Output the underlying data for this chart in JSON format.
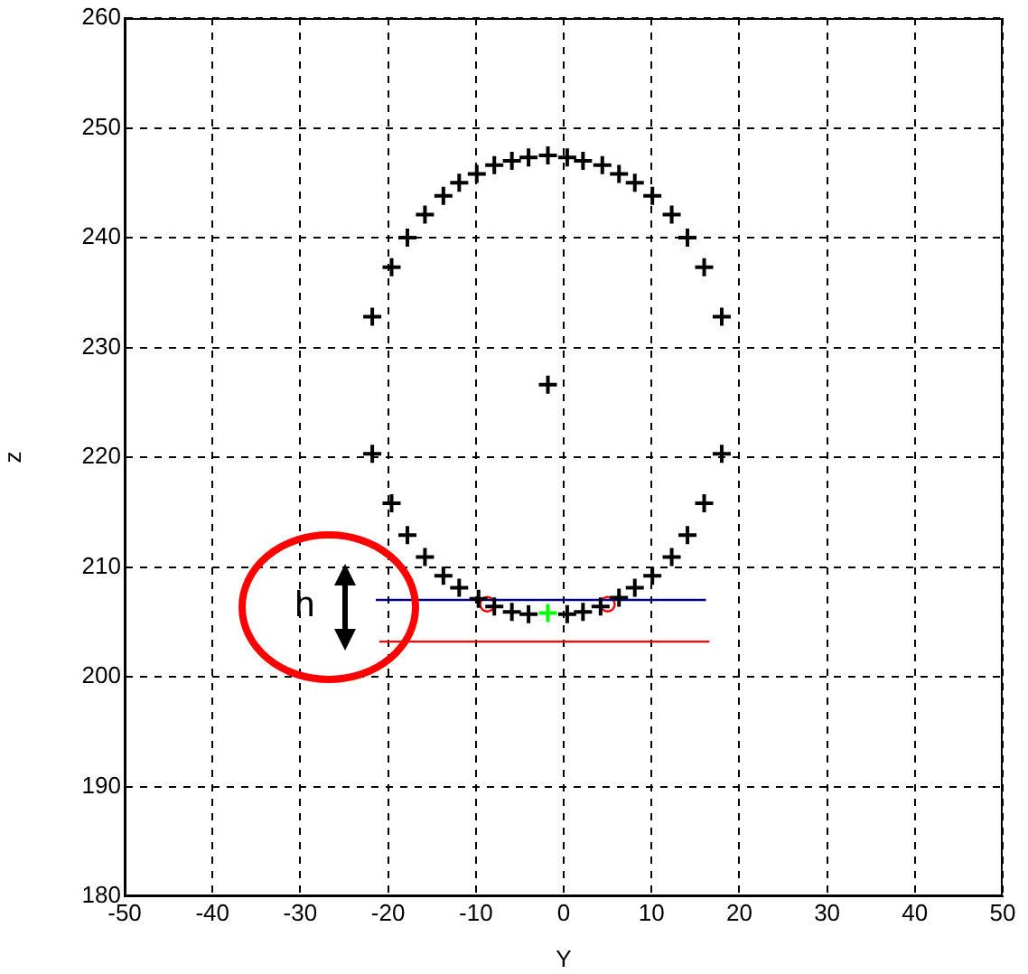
{
  "chart_data": {
    "type": "scatter",
    "xlabel": "Y",
    "ylabel": "z",
    "xlim": [
      -50,
      50
    ],
    "xticks": [
      -50,
      -40,
      -30,
      -20,
      -10,
      0,
      10,
      20,
      30,
      40,
      50
    ],
    "ylim": [
      180,
      260
    ],
    "yticks": [
      180,
      190,
      200,
      210,
      220,
      230,
      240,
      250,
      260
    ],
    "grid": true,
    "legend": false,
    "series": [
      {
        "type": "scatter",
        "marker": "cross",
        "color": "#000000",
        "x": [
          -21.8,
          -19.6,
          -17.8,
          -15.8,
          -13.7,
          -11.9,
          -9.9,
          -7.9,
          -5.9,
          -4.0,
          -1.8,
          0.4,
          2.2,
          4.4,
          6.3,
          8.1,
          10.1,
          12.3,
          14.1,
          16.0,
          18.0,
          -21.8,
          18.0,
          -1.8,
          -19.6,
          -17.8,
          -15.8,
          -13.7,
          -11.9,
          -9.7,
          -7.9,
          -5.9,
          -4.0,
          0.4,
          2.2,
          4.2,
          6.3,
          8.1,
          10.1,
          12.3,
          14.1,
          16.0
        ],
        "values": [
          232.8,
          237.3,
          240.0,
          242.1,
          243.8,
          245.0,
          245.8,
          246.6,
          247.0,
          247.3,
          247.5,
          247.3,
          247.0,
          246.6,
          245.8,
          245.0,
          243.8,
          242.1,
          240.0,
          237.3,
          232.8,
          220.3,
          220.3,
          226.6,
          215.8,
          212.9,
          210.9,
          209.2,
          208.1,
          207.1,
          206.4,
          205.9,
          205.7,
          205.7,
          205.9,
          206.4,
          207.2,
          208.1,
          209.2,
          210.9,
          212.9,
          215.8
        ]
      },
      {
        "type": "line",
        "marker": "none",
        "color": "#00008b",
        "x": [
          -21.4,
          16.2
        ],
        "values": [
          207.0,
          207.0
        ]
      },
      {
        "type": "line",
        "marker": "none",
        "color": "#ff0000",
        "x": [
          -21.0,
          16.6
        ],
        "values": [
          203.2,
          203.2
        ]
      },
      {
        "type": "scatter",
        "marker": "circle",
        "color": "#ff0000",
        "x": [
          -8.7,
          5.0
        ],
        "values": [
          206.6,
          206.6
        ]
      },
      {
        "type": "scatter",
        "marker": "cross",
        "color": "#00ff00",
        "x": [
          -1.8
        ],
        "values": [
          205.8
        ]
      }
    ],
    "annotations": [
      "h"
    ]
  }
}
